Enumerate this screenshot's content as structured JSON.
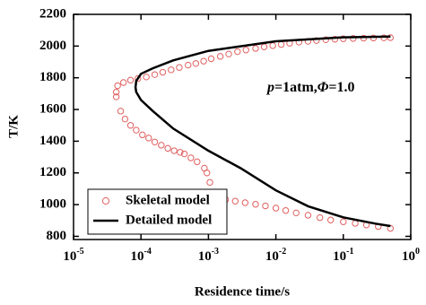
{
  "chart_data": {
    "type": "line",
    "xlabel": "Residence time/s",
    "ylabel": "T/K",
    "annotation": [
      "p",
      "=1atm,",
      "Φ",
      "=1.0"
    ],
    "xscale": "log",
    "xlim": [
      1e-05,
      1
    ],
    "ylim": [
      780,
      2200
    ],
    "xticks": [
      {
        "value": 1e-05,
        "label": "10",
        "exponent": "-5"
      },
      {
        "value": 0.0001,
        "label": "10",
        "exponent": "-4"
      },
      {
        "value": 0.001,
        "label": "10",
        "exponent": "-3"
      },
      {
        "value": 0.01,
        "label": "10",
        "exponent": "-2"
      },
      {
        "value": 0.1,
        "label": "10",
        "exponent": "-1"
      },
      {
        "value": 1,
        "label": "10",
        "exponent": "0"
      }
    ],
    "yticks": [
      800,
      1000,
      1200,
      1400,
      1600,
      1800,
      2000,
      2200
    ],
    "legend": "lower left",
    "series": [
      {
        "name": "Skeletal model",
        "type": "scatter",
        "color": "#e06060",
        "x": [
          4.5e-05,
          5.5e-05,
          7e-05,
          9e-05,
          0.00012,
          0.00016,
          0.00021,
          0.00028,
          0.00037,
          0.0005,
          0.00065,
          0.00085,
          0.0011,
          0.0015,
          0.002,
          0.0027,
          0.0036,
          0.005,
          0.0067,
          0.009,
          0.012,
          0.016,
          0.022,
          0.03,
          0.04,
          0.055,
          0.075,
          0.1,
          0.14,
          0.2,
          0.28,
          0.4,
          0.5,
          4.3e-05,
          4.3e-05,
          5e-05,
          5.8e-05,
          7e-05,
          8.5e-05,
          0.000105,
          0.00013,
          0.00016,
          0.0002,
          0.00025,
          0.00031,
          0.00038,
          0.00044,
          0.00055,
          0.00068,
          0.00087,
          0.00095,
          0.00105,
          0.0014,
          0.0018,
          0.0025,
          0.0035,
          0.005,
          0.007,
          0.01,
          0.014,
          0.02,
          0.03,
          0.045,
          0.065,
          0.1,
          0.15,
          0.22,
          0.33,
          0.5
        ],
        "values": [
          1750,
          1770,
          1785,
          1795,
          1805,
          1820,
          1835,
          1850,
          1865,
          1880,
          1890,
          1905,
          1920,
          1935,
          1950,
          1965,
          1975,
          1985,
          1995,
          2003,
          2010,
          2018,
          2025,
          2030,
          2035,
          2040,
          2043,
          2046,
          2048,
          2050,
          2051,
          2052,
          2053,
          1710,
          1680,
          1590,
          1540,
          1500,
          1470,
          1440,
          1420,
          1395,
          1375,
          1355,
          1340,
          1330,
          1320,
          1295,
          1270,
          1230,
          1200,
          1140,
          1040,
          1032,
          1022,
          1012,
          1002,
          992,
          978,
          963,
          948,
          933,
          918,
          903,
          892,
          882,
          872,
          862,
          850
        ]
      },
      {
        "name": "Detailed model",
        "type": "line",
        "color": "#000000",
        "x": [
          0.5,
          0.1,
          0.01,
          0.001,
          0.0003,
          0.00015,
          0.0001,
          8.5e-05,
          8.3e-05,
          8.5e-05,
          0.0001,
          0.00015,
          0.0003,
          0.001,
          0.003,
          0.01,
          0.03,
          0.1,
          0.3,
          0.5
        ],
        "values": [
          2060,
          2055,
          2030,
          1970,
          1910,
          1860,
          1825,
          1780,
          1740,
          1710,
          1660,
          1590,
          1480,
          1340,
          1230,
          1090,
          990,
          920,
          880,
          865
        ]
      }
    ]
  }
}
